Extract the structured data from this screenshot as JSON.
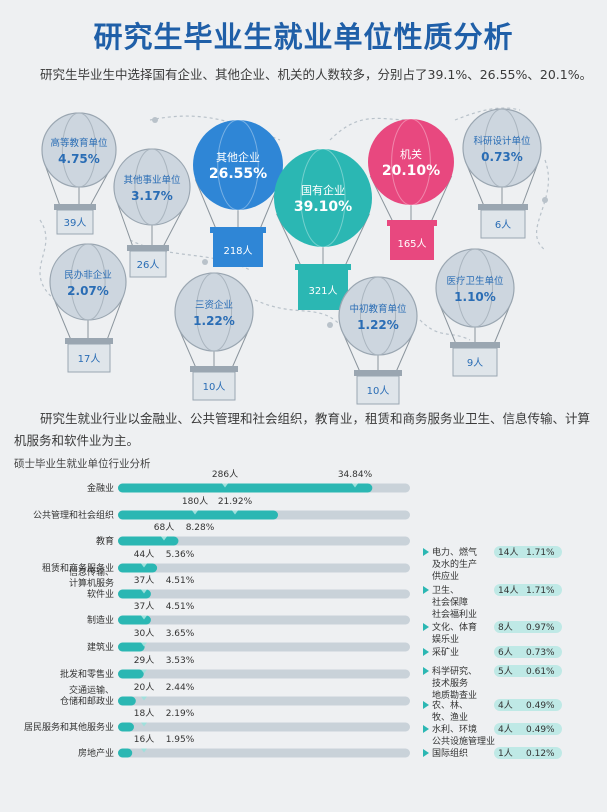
{
  "title": "研究生毕业生就业单位性质分析",
  "intro": "研究生毕业生中选择国有企业、其他企业、机关的人数较多，分别占了39.1%、26.55%、20.1%。",
  "industry_intro": "研究生就业行业以金融业、公共管理和社会组织，教育业，租赁和商务服务业卫生、信息传输、计算机服务和软件业为主。",
  "chart_data": [
    {
      "type": "bubble",
      "title": "研究生毕业生就业单位性质分析",
      "items": [
        {
          "name": "高等教育单位",
          "percent": "4.75%",
          "count": "39人",
          "color": "#cdd6df"
        },
        {
          "name": "其他事业单位",
          "percent": "3.17%",
          "count": "26人",
          "color": "#cdd6df"
        },
        {
          "name": "其他企业",
          "percent": "26.55%",
          "count": "218人",
          "color": "#2f86d6"
        },
        {
          "name": "国有企业",
          "percent": "39.10%",
          "count": "321人",
          "color": "#2bb7b3"
        },
        {
          "name": "机关",
          "percent": "20.10%",
          "count": "165人",
          "color": "#e8487f"
        },
        {
          "name": "科研设计单位",
          "percent": "0.73%",
          "count": "6人",
          "color": "#cdd6df"
        },
        {
          "name": "民办非企业",
          "percent": "2.07%",
          "count": "17人",
          "color": "#cdd6df"
        },
        {
          "name": "三资企业",
          "percent": "1.22%",
          "count": "10人",
          "color": "#cdd6df"
        },
        {
          "name": "中初教育单位",
          "percent": "1.22%",
          "count": "10人",
          "color": "#cdd6df"
        },
        {
          "name": "医疗卫生单位",
          "percent": "1.10%",
          "count": "9人",
          "color": "#cdd6df"
        }
      ]
    },
    {
      "type": "bar",
      "title": "硕士毕业生就业单位行业分析",
      "categories": [
        "金融业",
        "公共管理和社会组织",
        "教育",
        "租赁和商务服务业",
        "信息传输、计算机服务软件业",
        "制造业",
        "建筑业",
        "批发和零售业",
        "交通运输、仓储和邮政业",
        "居民服务和其他服务业",
        "房地产业"
      ],
      "counts": [
        "286人",
        "180人",
        "68人",
        "44人",
        "37人",
        "37人",
        "30人",
        "29人",
        "20人",
        "18人",
        "16人"
      ],
      "percents": [
        "34.84%",
        "21.92%",
        "8.28%",
        "5.36%",
        "4.51%",
        "4.51%",
        "3.65%",
        "3.53%",
        "2.44%",
        "2.19%",
        "1.95%"
      ],
      "values": [
        34.84,
        21.92,
        8.28,
        5.36,
        4.51,
        4.51,
        3.65,
        3.53,
        2.44,
        2.19,
        1.95
      ],
      "xlim": [
        0,
        40
      ],
      "colors": {
        "fill": "#2bb7b3",
        "track": "#c9d2d9"
      }
    },
    {
      "type": "table",
      "rows": [
        {
          "name": "电力、燃气及水的生产供应业",
          "count": "14人",
          "percent": "1.71%"
        },
        {
          "name": "卫生、社会保障社会福利业",
          "count": "14人",
          "percent": "1.71%"
        },
        {
          "name": "文化、体育娱乐业",
          "count": "8人",
          "percent": "0.97%"
        },
        {
          "name": "采矿业",
          "count": "6人",
          "percent": "0.73%"
        },
        {
          "name": "科学研究、技术服务地质勘查业",
          "count": "5人",
          "percent": "0.61%"
        },
        {
          "name": "农、林、牧、渔业",
          "count": "4人",
          "percent": "0.49%"
        },
        {
          "name": "水利、环境公共设施管理业",
          "count": "4人",
          "percent": "0.49%"
        },
        {
          "name": "国际组织",
          "count": "1人",
          "percent": "0.12%"
        }
      ]
    }
  ]
}
